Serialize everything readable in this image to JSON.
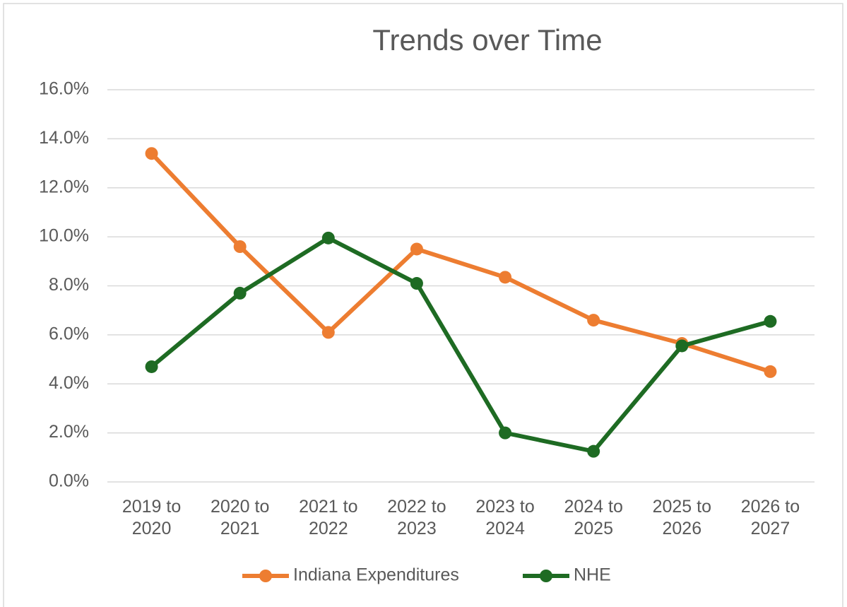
{
  "chart_data": {
    "type": "line",
    "title": "Trends over Time",
    "categories": [
      "2019 to 2020",
      "2020 to 2021",
      "2021 to 2022",
      "2022 to 2023",
      "2023 to 2024",
      "2024 to 2025",
      "2025 to 2026",
      "2026 to 2027"
    ],
    "series": [
      {
        "name": "Indiana Expenditures",
        "color": "#ed7d31",
        "values": [
          13.4,
          9.6,
          6.1,
          9.5,
          8.35,
          6.6,
          5.65,
          4.5
        ]
      },
      {
        "name": "NHE",
        "color": "#1e6b23",
        "values": [
          4.7,
          7.7,
          9.95,
          8.1,
          2.0,
          1.25,
          5.55,
          6.55
        ]
      }
    ],
    "ylim": [
      0,
      16
    ],
    "yticks": [
      {
        "value": 0,
        "label": "0.0%"
      },
      {
        "value": 2,
        "label": "2.0%"
      },
      {
        "value": 4,
        "label": "4.0%"
      },
      {
        "value": 6,
        "label": "6.0%"
      },
      {
        "value": 8,
        "label": "8.0%"
      },
      {
        "value": 10,
        "label": "10.0%"
      },
      {
        "value": 12,
        "label": "12.0%"
      },
      {
        "value": 14,
        "label": "14.0%"
      },
      {
        "value": 16,
        "label": "16.0%"
      }
    ],
    "grid": true,
    "legend": "bottom"
  }
}
